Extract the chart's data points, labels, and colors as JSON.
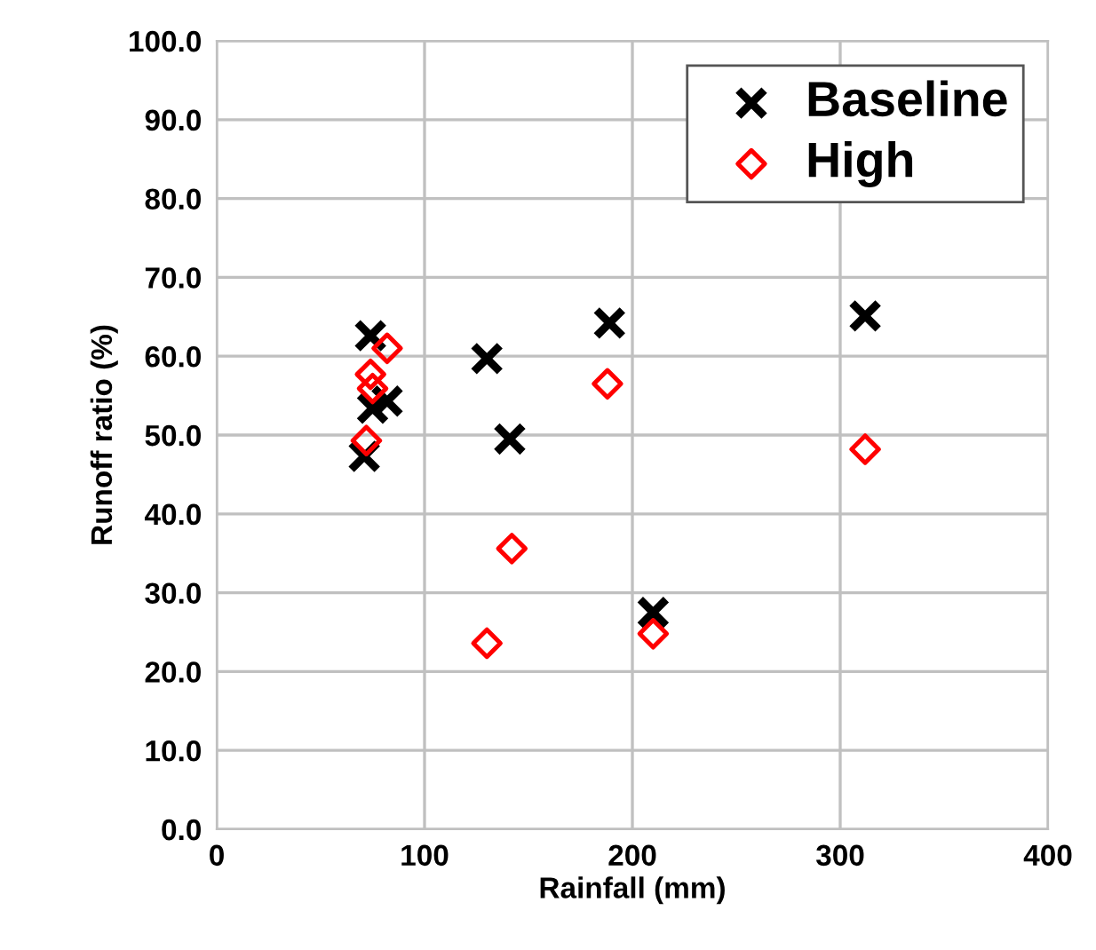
{
  "chart_data": {
    "type": "scatter",
    "xlabel": "Rainfall (mm)",
    "ylabel": "Runoff ratio (%)",
    "xlim": [
      0,
      400
    ],
    "xticks": [
      0,
      100,
      200,
      300,
      400
    ],
    "ylim": [
      0,
      100
    ],
    "yticks": [
      {
        "value": 0,
        "label": "0.0"
      },
      {
        "value": 10,
        "label": "10.0"
      },
      {
        "value": 20,
        "label": "20.0"
      },
      {
        "value": 30,
        "label": "30.0"
      },
      {
        "value": 40,
        "label": "40.0"
      },
      {
        "value": 50,
        "label": "50.0"
      },
      {
        "value": 60,
        "label": "60.0"
      },
      {
        "value": 70,
        "label": "70.0"
      },
      {
        "value": 80,
        "label": "80.0"
      },
      {
        "value": 90,
        "label": "90.0"
      },
      {
        "value": 100,
        "label": "100.0"
      }
    ],
    "grid": true,
    "legend": "top right",
    "series": [
      {
        "name": "Baseline",
        "color": "#000000",
        "marker": "cross",
        "x": [
          74,
          82,
          75,
          71,
          130,
          141,
          189,
          210,
          312
        ],
        "values": [
          62.6,
          54.3,
          53.4,
          47.3,
          59.7,
          49.5,
          64.2,
          27.5,
          65.1
        ]
      },
      {
        "name": "High",
        "color": "#ff0000",
        "marker": "diamond",
        "x": [
          82,
          74,
          75,
          72,
          130,
          142,
          188,
          210,
          312
        ],
        "values": [
          61.0,
          57.7,
          55.9,
          49.3,
          23.6,
          35.6,
          56.5,
          24.8,
          48.2
        ]
      }
    ]
  }
}
